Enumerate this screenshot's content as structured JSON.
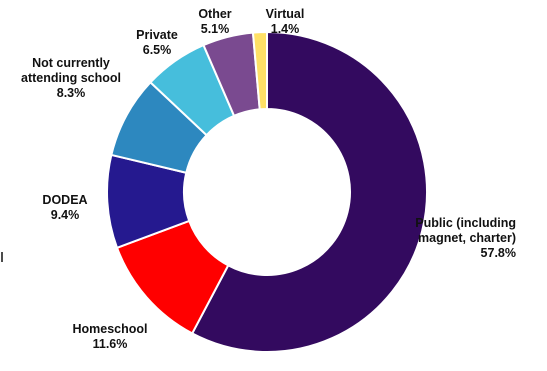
{
  "chart_data": {
    "type": "pie",
    "style": "donut",
    "legend": "none",
    "slices": [
      {
        "name": "Public (including magnet, charter)",
        "value": 57.8,
        "label_lines": [
          "Public (including",
          "magnet, charter)",
          "57.8%"
        ],
        "color": "#330a5f"
      },
      {
        "name": "Homeschool",
        "value": 11.6,
        "label_lines": [
          "Homeschool",
          "11.6%"
        ],
        "color": "#ff0000"
      },
      {
        "name": "DODEA",
        "value": 9.4,
        "label_lines": [
          "DODEA",
          "9.4%"
        ],
        "color": "#25198f"
      },
      {
        "name": "Not currently attending school",
        "value": 8.3,
        "label_lines": [
          "Not currently",
          "attending school",
          "8.3%"
        ],
        "color": "#2d88bf"
      },
      {
        "name": "Private",
        "value": 6.5,
        "label_lines": [
          "Private",
          "6.5%"
        ],
        "color": "#46bedc"
      },
      {
        "name": "Other",
        "value": 5.1,
        "label_lines": [
          "Other",
          "5.1%"
        ],
        "color": "#7a4a90"
      },
      {
        "name": "Virtual",
        "value": 1.4,
        "label_lines": [
          "Virtual",
          "1.4%"
        ],
        "color": "#ffe066"
      }
    ]
  }
}
